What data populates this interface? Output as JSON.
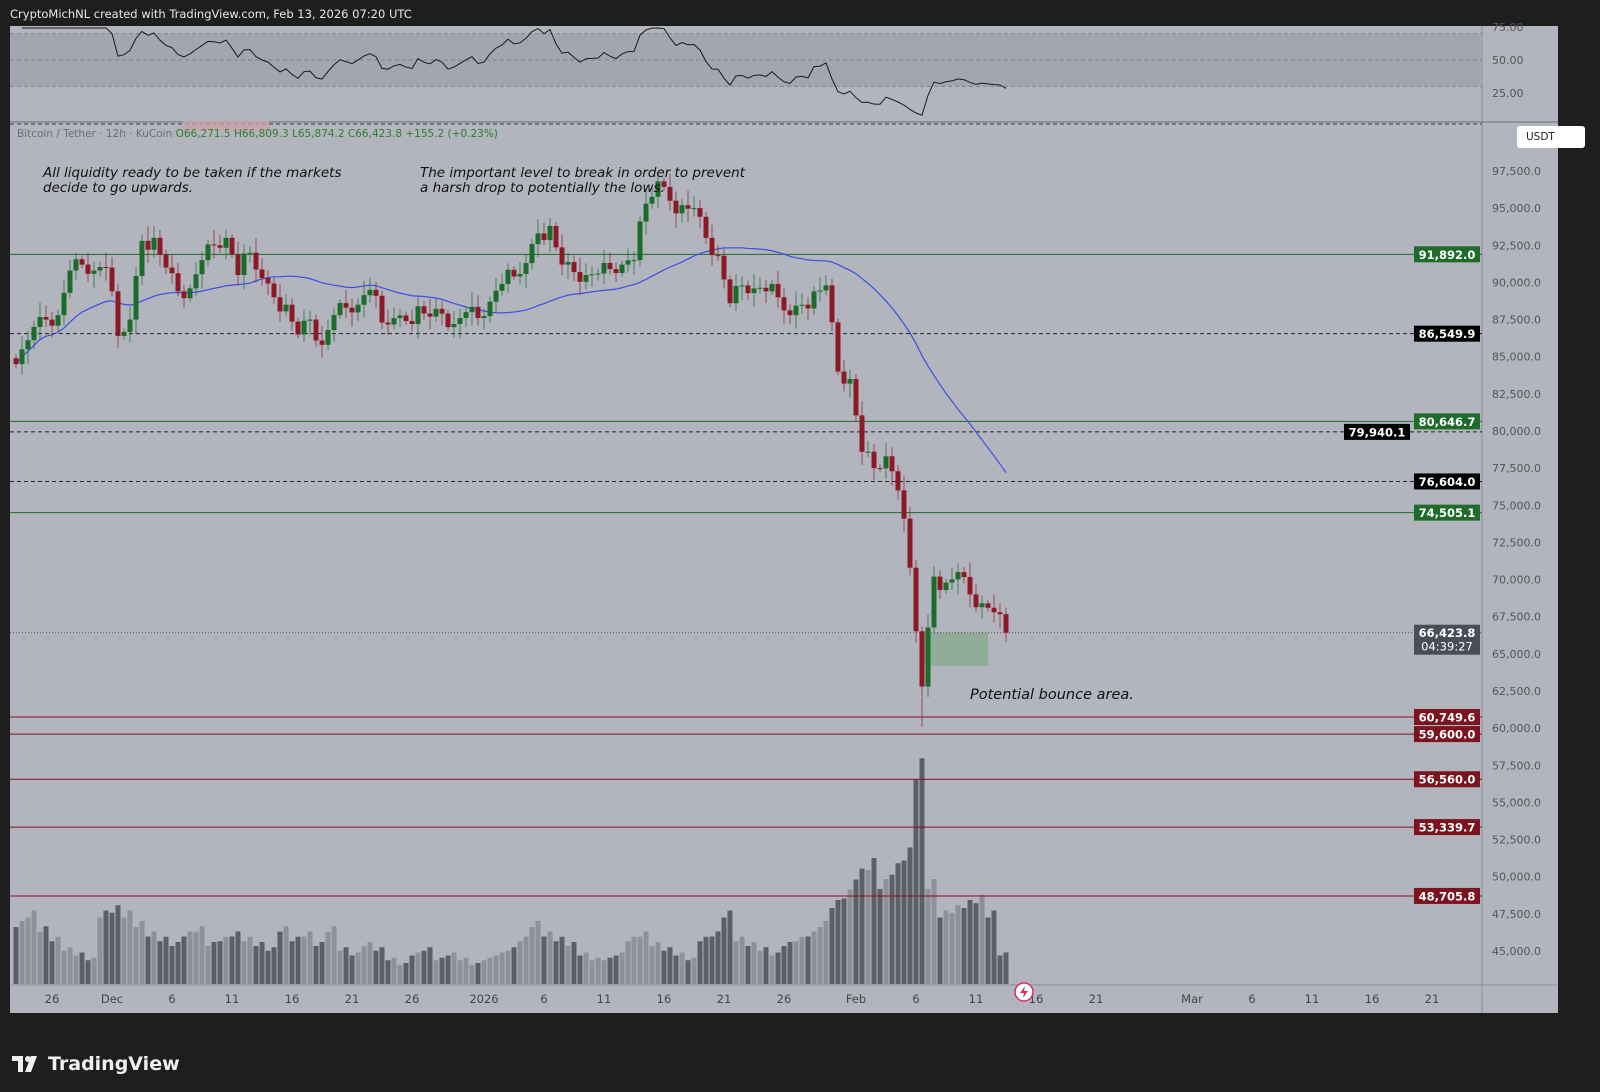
{
  "caption": "CryptoMichNL created with TradingView.com, Feb 13, 2026 07:20 UTC",
  "legend": {
    "symbol": "Bitcoin / Tether · 12h · KuCoin",
    "open": "O66,271.5",
    "high": "H66,809.3",
    "low": "L65,874.2",
    "close": "C66,423.8",
    "change": "+155.2 (+0.23%)"
  },
  "currency_button": "USDT",
  "annotations": {
    "liquidity": "All liquidity ready to be taken if the markets\ndecide to go upwards.",
    "important_level": "The important level to break in order to prevent\na harsh drop to potentially the lows.",
    "bounce": "Potential bounce area."
  },
  "branding": "TradingView",
  "chart_data": {
    "type": "candlestick",
    "interval": "12h",
    "start_date": "2025-11-23",
    "daily_closes": [
      85500,
      87000,
      87500,
      87800,
      90800,
      91200,
      90800,
      91000,
      86400,
      87500,
      92800,
      93000,
      91000,
      89400,
      89600,
      91500,
      92500,
      93000,
      90500,
      92000,
      90300,
      89000,
      88500,
      86500,
      87500,
      85800,
      87800,
      88300,
      88500,
      89500,
      87300,
      87600,
      87400,
      88400,
      87700,
      87900,
      87200,
      88000,
      87600,
      88700,
      89900,
      90400,
      91300,
      93300,
      93800,
      91200,
      90700,
      90500,
      90600,
      90900,
      91200,
      91500,
      95300,
      96800,
      95500,
      95200,
      95000,
      93000,
      91800,
      88600,
      89800,
      89600,
      89400,
      89000,
      87800,
      88500,
      89400,
      89800,
      84000,
      83500,
      78600,
      77500,
      78300,
      76000,
      70800,
      62800,
      70200,
      69800,
      70500,
      69000,
      68400,
      67800,
      66423.8
    ],
    "low_overrides": {
      "2026-02-06": 60100
    },
    "daily_volume_relative": [
      60,
      70,
      55,
      45,
      35,
      30,
      25,
      70,
      75,
      70,
      60,
      50,
      45,
      40,
      50,
      55,
      40,
      45,
      50,
      45,
      40,
      35,
      55,
      45,
      50,
      40,
      55,
      35,
      30,
      40,
      35,
      25,
      20,
      30,
      35,
      25,
      30,
      25,
      20,
      25,
      30,
      35,
      45,
      60,
      50,
      45,
      40,
      30,
      25,
      25,
      30,
      45,
      50,
      40,
      35,
      30,
      25,
      45,
      50,
      70,
      45,
      40,
      35,
      30,
      40,
      45,
      50,
      60,
      80,
      90,
      110,
      120,
      100,
      115,
      130,
      215,
      100,
      70,
      75,
      80,
      85,
      70,
      30
    ],
    "last_price": "66,423.8",
    "countdown": "04:39:27",
    "price_axis": {
      "min": 42500,
      "max": 100000,
      "ticks": [
        "97,500.0",
        "95,000.0",
        "92,500.0",
        "90,000.0",
        "87,500.0",
        "85,000.0",
        "82,500.0",
        "80,000.0",
        "77,500.0",
        "75,000.0",
        "72,500.0",
        "70,000.0",
        "67,500.0",
        "65,000.0",
        "62,500.0",
        "60,000.0",
        "57,500.0",
        "55,000.0",
        "52,500.0",
        "50,000.0",
        "47,500.0",
        "45,000.0"
      ]
    },
    "rsi_axis": {
      "ticks": [
        "75.00",
        "50.00",
        "25.00"
      ],
      "bands": [
        30,
        70
      ]
    },
    "levels": [
      {
        "price": 91892.0,
        "label": "91,892.0",
        "style": "solid",
        "color": "#1e6b2a"
      },
      {
        "price": 86549.9,
        "label": "86,549.9",
        "style": "dashed",
        "color": "#000000"
      },
      {
        "price": 80646.7,
        "label": "80,646.7",
        "style": "solid",
        "color": "#1e6b2a"
      },
      {
        "price": 79940.1,
        "label": "79,940.1",
        "style": "dashed",
        "color": "#000000"
      },
      {
        "price": 76604.0,
        "label": "76,604.0",
        "style": "dashed",
        "color": "#000000"
      },
      {
        "price": 74505.1,
        "label": "74,505.1",
        "style": "solid",
        "color": "#1e6b2a"
      },
      {
        "price": 60749.6,
        "label": "60,749.6",
        "style": "solid",
        "color": "#7c1420"
      },
      {
        "price": 59600.0,
        "label": "59,600.0",
        "style": "solid",
        "color": "#7c1420"
      },
      {
        "price": 56560.0,
        "label": "56,560.0",
        "style": "solid",
        "color": "#7c1420"
      },
      {
        "price": 53339.7,
        "label": "53,339.7",
        "style": "solid",
        "color": "#7c1420"
      },
      {
        "price": 48705.8,
        "label": "48,705.8",
        "style": "solid",
        "color": "#7c1420"
      }
    ],
    "bounce_zone": {
      "from_date": "2026-02-06T12:00",
      "to_date": "2026-02-12",
      "price_top": 66424,
      "price_bottom": 64200
    },
    "time_labels": [
      {
        "label": "26",
        "date": "2025-11-26"
      },
      {
        "label": "Dec",
        "date": "2025-12-01"
      },
      {
        "label": "6",
        "date": "2025-12-06"
      },
      {
        "label": "11",
        "date": "2025-12-11"
      },
      {
        "label": "16",
        "date": "2025-12-16"
      },
      {
        "label": "21",
        "date": "2025-12-21"
      },
      {
        "label": "26",
        "date": "2025-12-26"
      },
      {
        "label": "2026",
        "date": "2026-01-01"
      },
      {
        "label": "6",
        "date": "2026-01-06"
      },
      {
        "label": "11",
        "date": "2026-01-11"
      },
      {
        "label": "16",
        "date": "2026-01-16"
      },
      {
        "label": "21",
        "date": "2026-01-21"
      },
      {
        "label": "26",
        "date": "2026-01-26"
      },
      {
        "label": "Feb",
        "date": "2026-02-01"
      },
      {
        "label": "6",
        "date": "2026-02-06"
      },
      {
        "label": "11",
        "date": "2026-02-11"
      },
      {
        "label": "16",
        "date": "2026-02-16"
      },
      {
        "label": "21",
        "date": "2026-02-21"
      },
      {
        "label": "Mar",
        "date": "2026-03-01"
      },
      {
        "label": "6",
        "date": "2026-03-06"
      },
      {
        "label": "11",
        "date": "2026-03-11"
      },
      {
        "label": "16",
        "date": "2026-03-16"
      },
      {
        "label": "21",
        "date": "2026-03-21"
      }
    ],
    "colors": {
      "up": "#1b6b2b",
      "down": "#8c1a26",
      "ma": "#3b4fe0",
      "rsi": "#1a1a1a",
      "background": "#b2b5be"
    }
  }
}
